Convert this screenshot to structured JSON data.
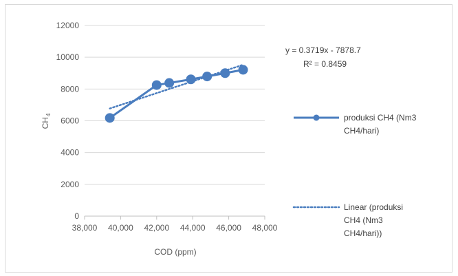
{
  "chart_data": {
    "type": "scatter",
    "title": "",
    "xlabel": "COD (ppm)",
    "ylabel": {
      "main": "CH",
      "sub": "4"
    },
    "xlim": [
      38000,
      48000
    ],
    "ylim": [
      0,
      12000
    ],
    "x_ticks": [
      38000,
      40000,
      42000,
      44000,
      46000,
      48000
    ],
    "x_tick_labels": [
      "38,000",
      "40,000",
      "42,000",
      "44,000",
      "46,000",
      "48,000"
    ],
    "y_ticks": [
      0,
      2000,
      4000,
      6000,
      8000,
      10000,
      12000
    ],
    "y_tick_labels": [
      "0",
      "2000",
      "4000",
      "6000",
      "8000",
      "10000",
      "12000"
    ],
    "grid": "horizontal",
    "legend_position": "right",
    "series": [
      {
        "name": [
          "produksi CH4 (Nm3",
          "CH4/hari)"
        ],
        "style": "line-markers",
        "color": "#4a7dbf",
        "x": [
          39400,
          42000,
          42700,
          43900,
          44800,
          45800,
          46800
        ],
        "y": [
          6180,
          8250,
          8380,
          8610,
          8790,
          9000,
          9210
        ]
      }
    ],
    "trendline": {
      "name": [
        "Linear (produksi",
        "CH4 (Nm3",
        "CH4/hari))"
      ],
      "type": "linear",
      "slope": 0.3719,
      "intercept": -7878.7,
      "style": "dotted",
      "color": "#4a7dbf",
      "equation": "y = 0.3719x - 7878.7",
      "r2_label": "R² = 0.8459"
    }
  }
}
